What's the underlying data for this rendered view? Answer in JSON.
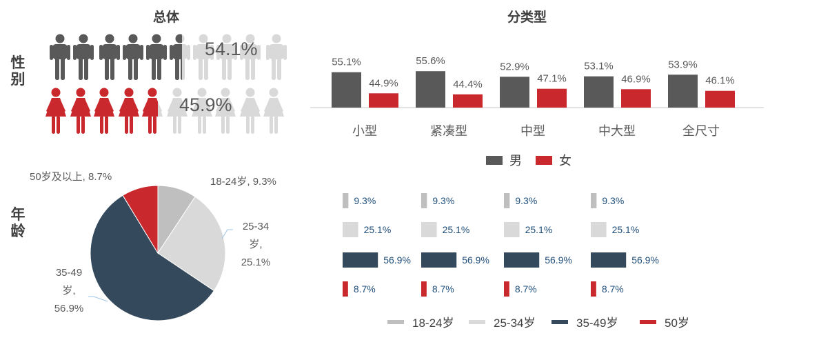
{
  "labels": {
    "overall_title": "总体",
    "by_type_title": "分类型",
    "gender_label": "性别",
    "age_label": "年龄"
  },
  "colors": {
    "male": "#595959",
    "female": "#c9282d",
    "age_18_24": "#bfbfbf",
    "age_25_34": "#d9d9d9",
    "age_35_49": "#344a5c",
    "age_50": "#c9282d",
    "faded": "#d9d9d9"
  },
  "chart_data": [
    {
      "type": "pictograph",
      "male_pct_label": "54.1%",
      "female_pct_label": "45.9%",
      "male": 54.1,
      "female": 45.9
    },
    {
      "type": "bar",
      "categories": [
        "小型",
        "紧凑型",
        "中型",
        "中大型",
        "全尺寸"
      ],
      "series": [
        {
          "name": "男",
          "values": [
            55.1,
            55.6,
            52.9,
            53.1,
            53.9
          ],
          "labels": [
            "55.1%",
            "55.6%",
            "52.9%",
            "53.1%",
            "53.9%"
          ]
        },
        {
          "name": "女",
          "values": [
            44.9,
            44.4,
            47.1,
            46.9,
            46.1
          ],
          "labels": [
            "44.9%",
            "44.4%",
            "47.1%",
            "46.9%",
            "46.1%"
          ]
        }
      ],
      "legend": [
        "男",
        "女"
      ]
    },
    {
      "type": "pie",
      "slices": [
        {
          "name": "18-24岁",
          "value": 9.3,
          "label": "18-24岁, 9.3%"
        },
        {
          "name": "25-34岁",
          "value": 25.1,
          "label_lines": [
            "25-34",
            "岁,",
            "25.1%"
          ]
        },
        {
          "name": "35-49岁",
          "value": 56.9,
          "label_lines": [
            "35-49",
            "岁,",
            "56.9%"
          ]
        },
        {
          "name": "50岁及以上",
          "value": 8.7,
          "label": "50岁及以上, 8.7%"
        }
      ]
    },
    {
      "type": "bar",
      "orientation": "horizontal",
      "panels": 4,
      "rows": [
        {
          "value": 9.3,
          "label": "9.3%"
        },
        {
          "value": 25.1,
          "label": "25.1%"
        },
        {
          "value": 56.9,
          "label": "56.9%"
        },
        {
          "value": 8.7,
          "label": "8.7%"
        }
      ],
      "legend": [
        "18-24岁",
        "25-34岁",
        "35-49岁",
        "50岁"
      ]
    }
  ]
}
